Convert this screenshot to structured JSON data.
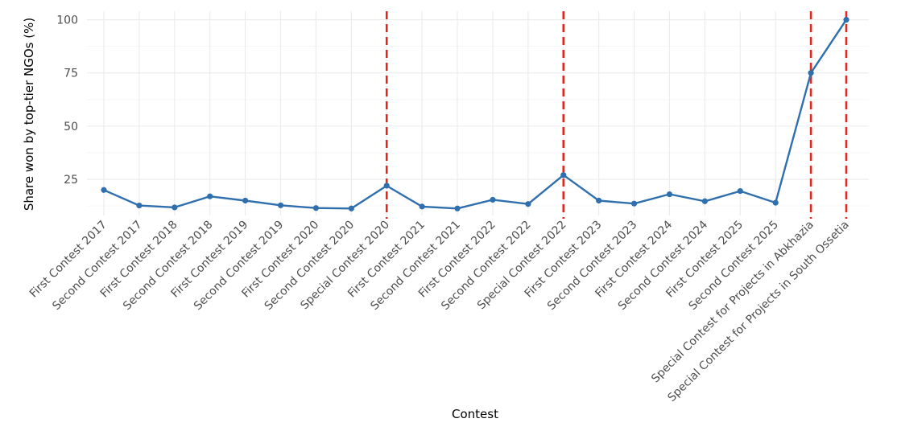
{
  "chart_data": {
    "type": "line",
    "title": "",
    "xlabel": "Contest",
    "ylabel": "Share won by top-tier NGOs (%)",
    "ylim": [
      8,
      104
    ],
    "yticks": [
      25,
      50,
      75,
      100
    ],
    "grid": true,
    "legend": "none",
    "categories": [
      "First Contest 2017",
      "Second Contest 2017",
      "First Contest 2018",
      "Second Contest 2018",
      "First Contest 2019",
      "Second Contest 2019",
      "First Contest 2020",
      "Second Contest 2020",
      "Special Contest 2020",
      "First Contest 2021",
      "Second Contest 2021",
      "First Contest 2022",
      "Second Contest 2022",
      "Special Contest 2022",
      "First Contest 2023",
      "Second Contest 2023",
      "First Contest 2024",
      "Second Contest 2024",
      "First Contest 2025",
      "Second Contest 2025",
      "Special Contest for Projects in Abkhazia",
      "Special Contest for Projects in South Ossetia"
    ],
    "series": [
      {
        "values": [
          20.0,
          12.7,
          11.8,
          17.0,
          15.0,
          12.8,
          11.5,
          11.3,
          22.0,
          12.2,
          11.3,
          15.4,
          13.4,
          27.0,
          15.0,
          13.6,
          18.0,
          14.7,
          19.5,
          14.0,
          75.0,
          100.0
        ]
      }
    ],
    "vertical_lines": [
      "Special Contest 2020",
      "Special Contest 2022",
      "Special Contest for Projects in Abkhazia",
      "Special Contest for Projects in South Ossetia"
    ],
    "colors": {
      "line": "#2f6fad",
      "vline": "#e0281e",
      "grid": "#ebebeb"
    }
  }
}
